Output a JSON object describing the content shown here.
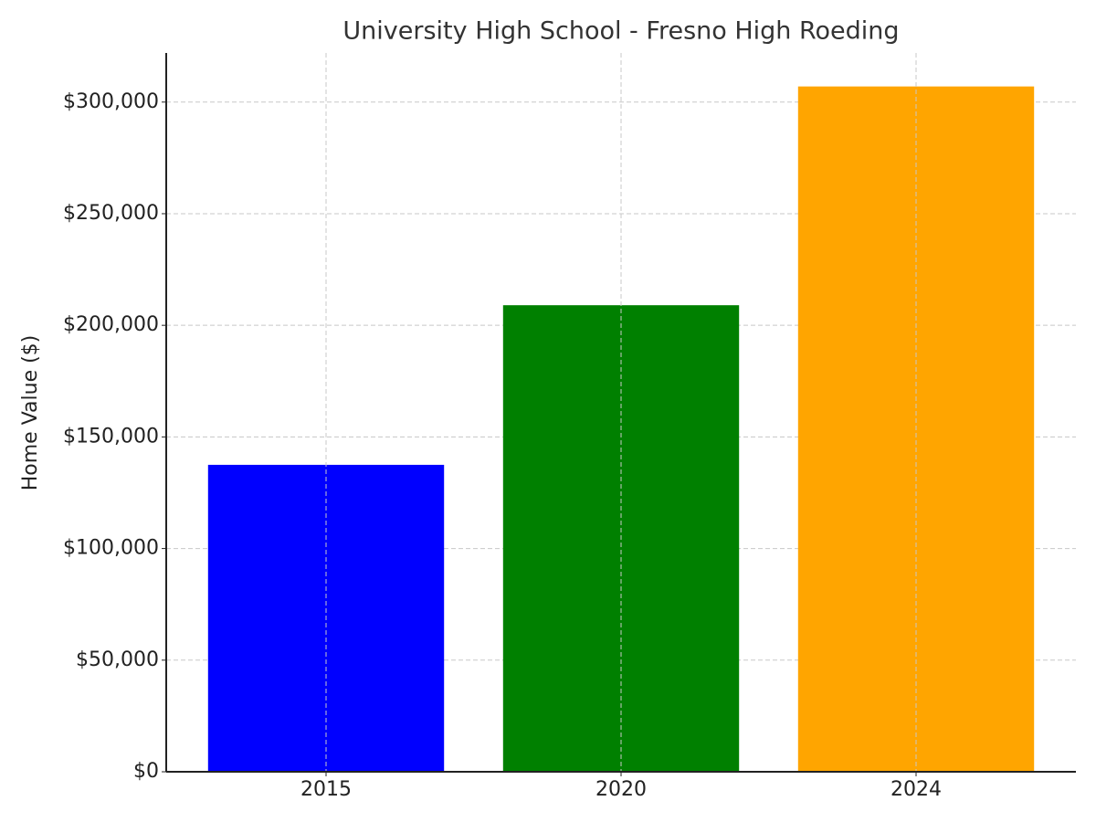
{
  "chart_data": {
    "type": "bar",
    "title": "University High School - Fresno High Roeding",
    "y_label": "Home Value ($)",
    "categories": [
      "2015",
      "2020",
      "2024"
    ],
    "values": [
      137500,
      209000,
      307000
    ],
    "colors": [
      "#0000ff",
      "#008000",
      "#ffa500"
    ],
    "ylim": [
      0,
      322000
    ],
    "yticks": [
      {
        "value": 0,
        "label": "$0"
      },
      {
        "value": 50000,
        "label": "$50,000"
      },
      {
        "value": 100000,
        "label": "$100,000"
      },
      {
        "value": 150000,
        "label": "$150,000"
      },
      {
        "value": 200000,
        "label": "$200,000"
      },
      {
        "value": 250000,
        "label": "$250,000"
      },
      {
        "value": 300000,
        "label": "$300,000"
      }
    ],
    "grid": true
  }
}
